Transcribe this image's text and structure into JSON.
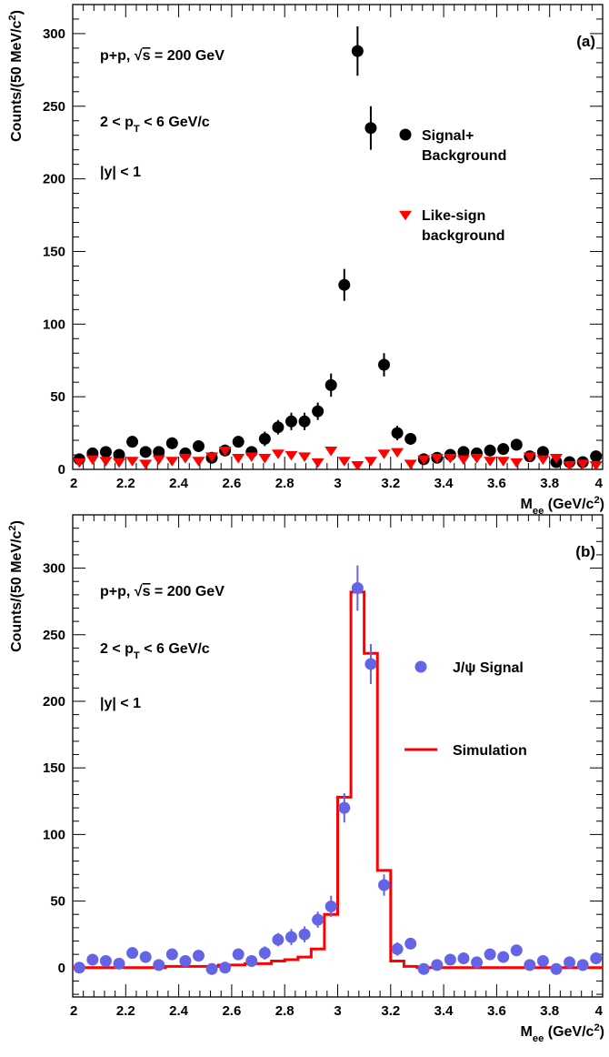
{
  "chart_data": [
    {
      "type": "scatter",
      "panel_label": "(a)",
      "ylabel": "Counts/(50 MeV/c²)",
      "xlabel": "M_ee (GeV/c²)",
      "xlim": [
        2.0,
        4.0
      ],
      "ylim": [
        0,
        320
      ],
      "xticks": [
        2,
        2.2,
        2.4,
        2.6,
        2.8,
        3,
        3.2,
        3.4,
        3.6,
        3.8,
        4
      ],
      "xtick_labels": [
        "2",
        "2.2",
        "2.4",
        "2.6",
        "2.8",
        "3",
        "3.2",
        "3.4",
        "3.6",
        "3.8",
        "4"
      ],
      "yticks": [
        0,
        50,
        100,
        150,
        200,
        250,
        300
      ],
      "ytick_labels": [
        "0",
        "50",
        "100",
        "150",
        "200",
        "250",
        "300"
      ],
      "annotations": [
        "p+p, √s = 200 GeV",
        "2 < p_T < 6 GeV/c",
        "|y| < 1"
      ],
      "legend": [
        {
          "label_lines": [
            "Signal+",
            "Background"
          ],
          "marker": "circle",
          "color": "#000000"
        },
        {
          "label_lines": [
            "Like-sign",
            "background"
          ],
          "marker": "triangle-down",
          "color": "#ff0000"
        }
      ],
      "series": [
        {
          "name": "Signal+Background",
          "marker": "circle",
          "color": "#000000",
          "x": [
            2.025,
            2.075,
            2.125,
            2.175,
            2.225,
            2.275,
            2.325,
            2.375,
            2.425,
            2.475,
            2.525,
            2.575,
            2.625,
            2.675,
            2.725,
            2.775,
            2.825,
            2.875,
            2.925,
            2.975,
            3.025,
            3.075,
            3.125,
            3.175,
            3.225,
            3.275,
            3.325,
            3.375,
            3.425,
            3.475,
            3.525,
            3.575,
            3.625,
            3.675,
            3.725,
            3.775,
            3.825,
            3.875,
            3.925,
            3.975
          ],
          "y": [
            7,
            11,
            12,
            10,
            19,
            12,
            12,
            18,
            11,
            16,
            8,
            13,
            19,
            12,
            21,
            29,
            33,
            33,
            40,
            58,
            127,
            288,
            235,
            72,
            25,
            21,
            7,
            8,
            10,
            12,
            11,
            13,
            14,
            17,
            9,
            12,
            5,
            5,
            5,
            9
          ],
          "yerr": [
            3,
            3,
            3,
            3,
            4,
            3,
            3,
            4,
            3,
            4,
            3,
            4,
            4,
            3,
            5,
            5,
            6,
            6,
            6,
            8,
            11,
            17,
            15,
            8,
            5,
            4,
            3,
            3,
            3,
            4,
            3,
            4,
            4,
            4,
            3,
            3,
            2,
            2,
            2,
            3
          ]
        },
        {
          "name": "Like-sign background",
          "marker": "triangle-down",
          "color": "#ff0000",
          "x": [
            2.025,
            2.075,
            2.125,
            2.175,
            2.225,
            2.275,
            2.325,
            2.375,
            2.425,
            2.475,
            2.525,
            2.575,
            2.625,
            2.675,
            2.725,
            2.775,
            2.825,
            2.875,
            2.925,
            2.975,
            3.025,
            3.075,
            3.125,
            3.175,
            3.225,
            3.275,
            3.325,
            3.375,
            3.425,
            3.475,
            3.525,
            3.575,
            3.625,
            3.675,
            3.725,
            3.775,
            3.825,
            3.875,
            3.925,
            3.975
          ],
          "y": [
            5,
            7,
            6,
            5,
            6,
            4,
            7,
            6,
            8,
            6,
            9,
            13,
            8,
            9,
            8,
            11,
            10,
            9,
            5,
            13,
            6,
            3,
            6,
            11,
            12,
            4,
            7,
            8,
            8,
            7,
            8,
            6,
            6,
            5,
            9,
            7,
            8,
            3,
            4,
            3
          ],
          "yerr": []
        }
      ]
    },
    {
      "type": "scatter",
      "panel_label": "(b)",
      "ylabel": "Counts/(50 MeV/c²)",
      "xlabel": "M_ee (GeV/c²)",
      "xlim": [
        2.0,
        4.0
      ],
      "ylim": [
        -22,
        340
      ],
      "xticks": [
        2,
        2.2,
        2.4,
        2.6,
        2.8,
        3,
        3.2,
        3.4,
        3.6,
        3.8,
        4
      ],
      "xtick_labels": [
        "2",
        "2.2",
        "2.4",
        "2.6",
        "2.8",
        "3",
        "3.2",
        "3.4",
        "3.6",
        "3.8",
        "4"
      ],
      "yticks": [
        0,
        50,
        100,
        150,
        200,
        250,
        300
      ],
      "ytick_labels": [
        "0",
        "50",
        "100",
        "150",
        "200",
        "250",
        "300"
      ],
      "annotations": [
        "p+p, √s = 200 GeV",
        "2 < p_T < 6 GeV/c",
        "|y| < 1"
      ],
      "legend": [
        {
          "label_lines": [
            "J/ψ Signal"
          ],
          "marker": "circle",
          "color": "#6464e6"
        },
        {
          "label_lines": [
            "Simulation"
          ],
          "marker": "line",
          "color": "#ff0000"
        }
      ],
      "series": [
        {
          "name": "J/ψ Signal",
          "marker": "circle",
          "color": "#6464e6",
          "x": [
            2.025,
            2.075,
            2.125,
            2.175,
            2.225,
            2.275,
            2.325,
            2.375,
            2.425,
            2.475,
            2.525,
            2.575,
            2.625,
            2.675,
            2.725,
            2.775,
            2.825,
            2.875,
            2.925,
            2.975,
            3.025,
            3.075,
            3.125,
            3.175,
            3.225,
            3.275,
            3.325,
            3.375,
            3.425,
            3.475,
            3.525,
            3.575,
            3.625,
            3.675,
            3.725,
            3.775,
            3.825,
            3.875,
            3.925,
            3.975
          ],
          "y": [
            0,
            6,
            5,
            3,
            11,
            8,
            2,
            10,
            5,
            9,
            -1,
            0,
            10,
            5,
            11,
            21,
            23,
            25,
            36,
            46,
            120,
            285,
            228,
            62,
            14,
            18,
            -1,
            2,
            6,
            7,
            4,
            10,
            8,
            13,
            2,
            5,
            -1,
            4,
            2,
            7
          ],
          "yerr": [
            4,
            3,
            3,
            3,
            4,
            3,
            3,
            4,
            3,
            4,
            3,
            4,
            4,
            3,
            5,
            5,
            6,
            6,
            6,
            8,
            11,
            17,
            15,
            8,
            5,
            4,
            3,
            3,
            3,
            4,
            3,
            4,
            4,
            4,
            3,
            3,
            2,
            2,
            2,
            3
          ]
        },
        {
          "name": "Simulation",
          "marker": "step",
          "color": "#ff0000",
          "x": [
            2.025,
            2.075,
            2.125,
            2.175,
            2.225,
            2.275,
            2.325,
            2.375,
            2.425,
            2.475,
            2.525,
            2.575,
            2.625,
            2.675,
            2.725,
            2.775,
            2.825,
            2.875,
            2.925,
            2.975,
            3.025,
            3.075,
            3.125,
            3.175,
            3.225,
            3.275,
            3.325,
            3.375,
            3.425,
            3.475,
            3.525,
            3.575,
            3.625,
            3.675,
            3.725,
            3.775,
            3.825,
            3.875,
            3.925,
            3.975
          ],
          "y": [
            0,
            0,
            0,
            0,
            0,
            0,
            0,
            1,
            1,
            1,
            1,
            2,
            2,
            3,
            3,
            5,
            6,
            8,
            14,
            40,
            128,
            282,
            236,
            73,
            5,
            1,
            0,
            0,
            0,
            0,
            0,
            0,
            0,
            0,
            0,
            0,
            0,
            0,
            0,
            0
          ]
        }
      ]
    }
  ]
}
